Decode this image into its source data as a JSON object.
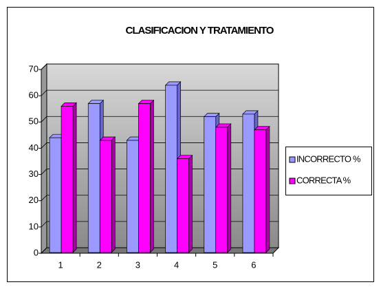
{
  "chart_data": {
    "type": "bar3d",
    "title": "CLASIFICACION Y TRATAMIENTO",
    "categories": [
      "1",
      "2",
      "3",
      "4",
      "5",
      "6"
    ],
    "series": [
      {
        "name": "INCORRECTO %",
        "color": "#9999ff",
        "values": [
          44,
          57,
          43,
          64,
          52,
          53
        ]
      },
      {
        "name": "CORRECTA %",
        "color": "#ff00ff",
        "values": [
          56,
          43,
          57,
          36,
          48,
          47
        ]
      }
    ],
    "ylim": [
      0,
      70
    ],
    "yticks": [
      0,
      10,
      20,
      30,
      40,
      50,
      60,
      70
    ],
    "grid": true,
    "legend": "right"
  }
}
